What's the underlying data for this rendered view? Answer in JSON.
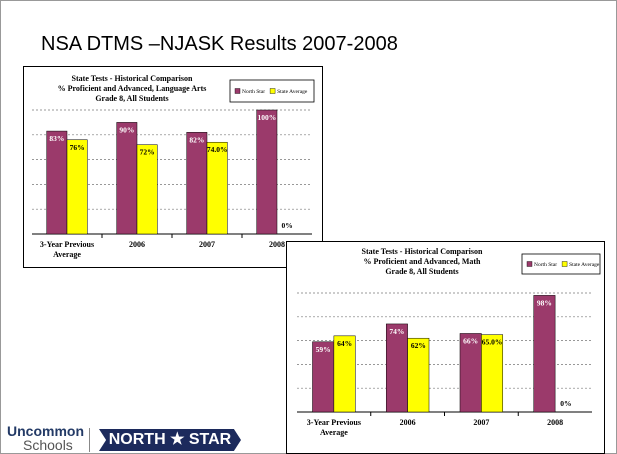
{
  "title": "NSA DTMS –NJASK Results 2007-2008",
  "logo": {
    "left_top": "Uncommon",
    "left_bottom": "Schools",
    "right": "NORTH ★ STAR"
  },
  "chart_data": [
    {
      "type": "bar",
      "title": [
        "State Tests - Historical Comparison",
        "% Proficient and Advanced, Language Arts",
        "Grade 8, All Students"
      ],
      "categories": [
        "3-Year Previous Average",
        "2006",
        "2007",
        "2008"
      ],
      "series": [
        {
          "name": "North Star",
          "color": "#9b3a6b",
          "values": [
            83,
            90,
            82,
            100
          ],
          "value_labels": [
            "83%",
            "90%",
            "82%",
            "100%"
          ]
        },
        {
          "name": "State Average",
          "color": "#ffff00",
          "values": [
            76,
            72,
            74,
            0
          ],
          "value_labels": [
            "76%",
            "72%",
            "74.0%",
            "0%"
          ]
        }
      ],
      "ylim": [
        0,
        100
      ],
      "yticks": [
        0,
        20,
        40,
        60,
        80,
        100
      ],
      "grid": true,
      "legend": "top-right"
    },
    {
      "type": "bar",
      "title": [
        "State Tests - Historical Comparison",
        "% Proficient and Advanced, Math",
        "Grade 8, All Students"
      ],
      "categories": [
        "3-Year Previous Average",
        "2006",
        "2007",
        "2008"
      ],
      "series": [
        {
          "name": "North Star",
          "color": "#9b3a6b",
          "values": [
            59,
            74,
            66,
            98
          ],
          "value_labels": [
            "59%",
            "74%",
            "66%",
            "98%"
          ]
        },
        {
          "name": "State Average",
          "color": "#ffff00",
          "values": [
            64,
            62,
            65,
            0
          ],
          "value_labels": [
            "64%",
            "62%",
            "65.0%",
            "0%"
          ]
        }
      ],
      "ylim": [
        0,
        100
      ],
      "yticks": [
        0,
        20,
        40,
        60,
        80,
        100
      ],
      "grid": true,
      "legend": "top-right"
    }
  ]
}
